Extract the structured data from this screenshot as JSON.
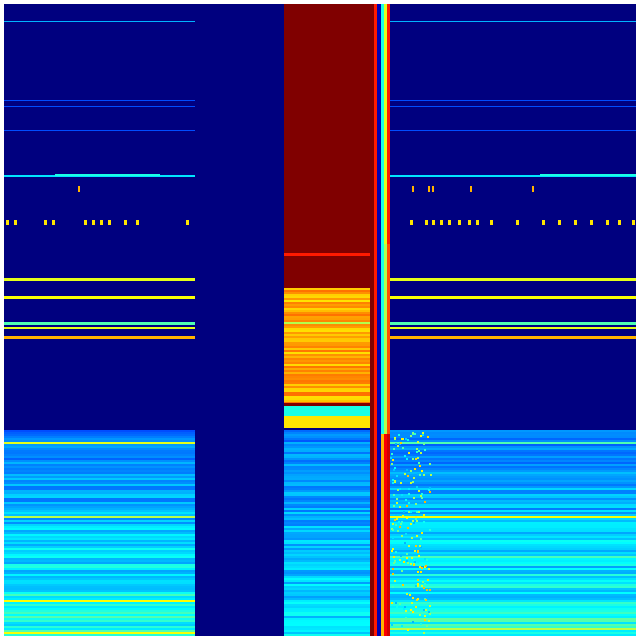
{
  "chart_data": {
    "type": "heatmap",
    "colormap": "jet",
    "title": "",
    "xlabel": "",
    "ylabel": "",
    "axes_visible": false,
    "colorbar": false,
    "colors": {
      "low": "#00007f",
      "blue": "#0000ff",
      "cyan": "#00ffff",
      "yellow": "#ffff00",
      "high": "#7f0000"
    }
  }
}
